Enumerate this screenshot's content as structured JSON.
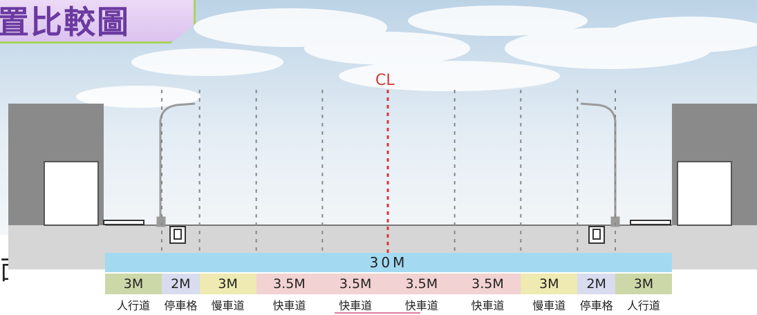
{
  "title": "置比較圖",
  "side_text": "面",
  "centerline_label": "CL",
  "total_width_label": "30M",
  "lanes": [
    {
      "width": "3M",
      "name": "人行道",
      "color": "#cdd8a8",
      "span": 3
    },
    {
      "width": "2M",
      "name": "停車格",
      "color": "#d9dbef",
      "span": 2
    },
    {
      "width": "3M",
      "name": "慢車道",
      "color": "#eeeab1",
      "span": 3
    },
    {
      "width": "3.5M",
      "name": "快車道",
      "color": "#f2d2d2",
      "span": 3.5
    },
    {
      "width": "3.5M",
      "name": "快車道",
      "color": "#f2d2d2",
      "span": 3.5
    },
    {
      "width": "3.5M",
      "name": "快車道",
      "color": "#f2d2d2",
      "span": 3.5
    },
    {
      "width": "3.5M",
      "name": "快車道",
      "color": "#f2d2d2",
      "span": 3.5
    },
    {
      "width": "3M",
      "name": "慢車道",
      "color": "#eeeab1",
      "span": 3
    },
    {
      "width": "2M",
      "name": "停車格",
      "color": "#d9dbef",
      "span": 2
    },
    {
      "width": "3M",
      "name": "人行道",
      "color": "#cdd8a8",
      "span": 3
    }
  ],
  "colors": {
    "sky_top": "#c9dcec",
    "sky_bottom": "#eef3f7",
    "ground": "#d9d8d8",
    "building": "#8a8a8a",
    "centerline": "#d23a3a",
    "divider": "#888888",
    "total_bar": "#a3daf2"
  }
}
